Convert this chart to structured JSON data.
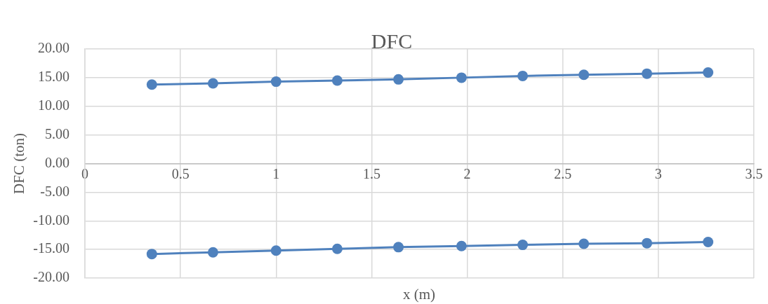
{
  "chart_data": {
    "type": "line",
    "title": "DFC",
    "xlabel": "x (m)",
    "ylabel": "DFC (ton)",
    "x": [
      0.35,
      0.67,
      1.0,
      1.32,
      1.64,
      1.97,
      2.29,
      2.61,
      2.94,
      3.26
    ],
    "series": [
      {
        "color": "#4f81bd",
        "values": [
          13.8,
          14.0,
          14.3,
          14.5,
          14.7,
          15.0,
          15.3,
          15.5,
          15.7,
          15.9
        ]
      },
      {
        "color": "#4f81bd",
        "values": [
          -15.8,
          -15.5,
          -15.2,
          -14.9,
          -14.6,
          -14.4,
          -14.2,
          -14.0,
          -13.9,
          -13.7
        ]
      }
    ],
    "xlim": [
      0,
      3.5
    ],
    "xticks": [
      0,
      0.5,
      1,
      1.5,
      2,
      2.5,
      3,
      3.5
    ],
    "ylim": [
      -20,
      20
    ],
    "yticks": [
      {
        "value": -20,
        "label": "-20.00"
      },
      {
        "value": -15,
        "label": "-15.00"
      },
      {
        "value": -10,
        "label": "-10.00"
      },
      {
        "value": -5,
        "label": "-5.00"
      },
      {
        "value": 0,
        "label": "0.00"
      },
      {
        "value": 5,
        "label": "5.00"
      },
      {
        "value": 10,
        "label": "10.00"
      },
      {
        "value": 15,
        "label": "15.00"
      },
      {
        "value": 20,
        "label": "20.00"
      }
    ],
    "grid": true,
    "marker": "circle",
    "line_style": "solid"
  }
}
